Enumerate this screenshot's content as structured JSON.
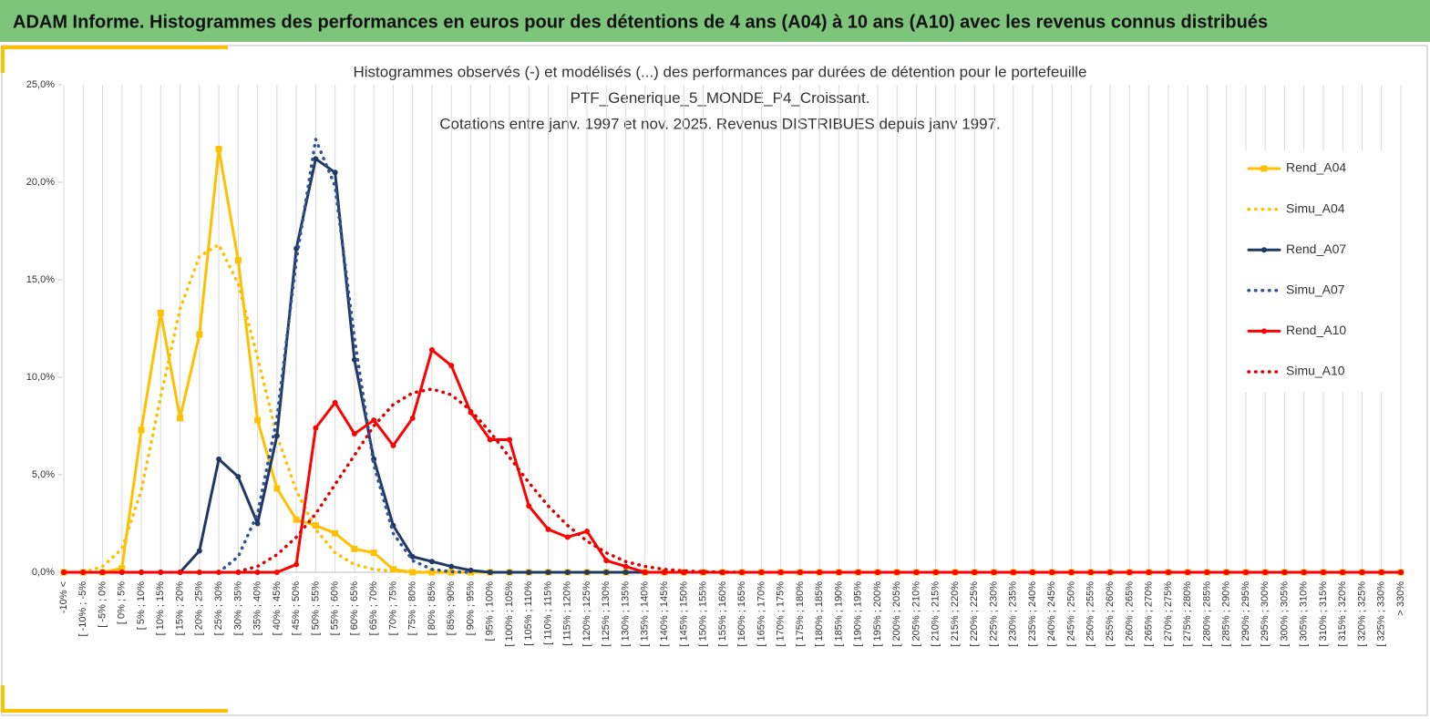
{
  "header_title": "ADAM Informe. Histogrammes des performances en euros pour des détentions de 4 ans (A04) à 10 ans (A10) avec les revenus connus distribués",
  "chart_data": {
    "type": "line",
    "title": [
      "Histogrammes observés (-) et modélisés (...) des performances  par durées de détention pour le portefeuille",
      "PTF_Generique_5_MONDE_P4_Croissant.",
      "Cotations entre janv. 1997 et nov. 2025. Revenus DISTRIBUES depuis janv 1997."
    ],
    "categories": [
      "-10% <",
      "[ -10% ; -5%",
      "[ -5% ; 0%",
      "[ 0% ; 5%",
      "[ 5% ; 10%",
      "[ 10% ; 15%",
      "[ 15% ; 20%",
      "[ 20% ; 25%",
      "[ 25% ; 30%",
      "[ 30% ; 35%",
      "[ 35% ; 40%",
      "[ 40% ; 45%",
      "[ 45% ; 50%",
      "[ 50% ; 55%",
      "[ 55% ; 60%",
      "[ 60% ; 65%",
      "[ 65% ; 70%",
      "[ 70% ; 75%",
      "[ 75% ; 80%",
      "[ 80% ; 85%",
      "[ 85% ; 90%",
      "[ 90% ; 95%",
      "[ 95% ; 100%",
      "[ 100% ; 105%",
      "[ 105% ; 110%",
      "[ 110% ; 115%",
      "[ 115% ; 120%",
      "[ 120% ; 125%",
      "[ 125% ; 130%",
      "[ 130% ; 135%",
      "[ 135% ; 140%",
      "[ 140% ; 145%",
      "[ 145% ; 150%",
      "[ 150% ; 155%",
      "[ 155% ; 160%",
      "[ 160% ; 165%",
      "[ 165% ; 170%",
      "[ 170% ; 175%",
      "[ 175% ; 180%",
      "[ 180% ; 185%",
      "[ 185% ; 190%",
      "[ 190% ; 195%",
      "[ 195% ; 200%",
      "[ 200% ; 205%",
      "[ 205% ; 210%",
      "[ 210% ; 215%",
      "[ 215% ; 220%",
      "[ 220% ; 225%",
      "[ 225% ; 230%",
      "[ 230% ; 235%",
      "[ 235% ; 240%",
      "[ 240% ; 245%",
      "[ 245% ; 250%",
      "[ 250% ; 255%",
      "[ 255% ; 260%",
      "[ 260% ; 265%",
      "[ 265% ; 270%",
      "[ 270% ; 275%",
      "[ 275% ; 280%",
      "[ 280% ; 285%",
      "[ 285% ; 290%",
      "[ 290% ; 295%",
      "[ 295% ; 300%",
      "[ 300% ; 305%",
      "[ 305% ; 310%",
      "[ 310% ; 315%",
      "[ 315% ; 320%",
      "[ 320% ; 325%",
      "[ 325% ; 330%",
      "> 330%"
    ],
    "ylim": [
      0,
      25
    ],
    "yticks": [
      {
        "value": 0,
        "label": "0,0%"
      },
      {
        "value": 5,
        "label": "5,0%"
      },
      {
        "value": 10,
        "label": "10,0%"
      },
      {
        "value": 15,
        "label": "15,0%"
      },
      {
        "value": 20,
        "label": "20,0%"
      },
      {
        "value": 25,
        "label": "25,0%"
      }
    ],
    "grid": true,
    "legend": "right",
    "series": [
      {
        "name": "Rend_A04",
        "color": "#ffc000",
        "style": "solid",
        "marker": "square",
        "values": [
          0,
          0,
          0,
          0.2,
          7.3,
          13.3,
          7.9,
          12.2,
          21.7,
          16.0,
          7.8,
          4.3,
          2.7,
          2.4,
          2.0,
          1.2,
          1.0,
          0.15,
          0,
          0,
          0,
          0,
          0,
          0,
          0,
          0,
          0,
          0,
          0,
          0,
          0,
          0,
          0,
          0,
          0,
          0,
          0,
          0,
          0,
          0,
          0,
          0,
          0,
          0,
          0,
          0,
          0,
          0,
          0,
          0,
          0,
          0,
          0,
          0,
          0,
          0,
          0,
          0,
          0,
          0,
          0,
          0,
          0,
          0,
          0,
          0,
          0,
          0,
          0,
          0
        ]
      },
      {
        "name": "Simu_A04",
        "color": "#ffc000",
        "style": "dotted",
        "marker": "none",
        "values": [
          null,
          0,
          0.3,
          1.2,
          4.2,
          9.0,
          13.5,
          16.2,
          16.8,
          14.8,
          11.0,
          7.0,
          4.2,
          2.2,
          1.0,
          0.4,
          0.15,
          0.05,
          0.02,
          0.01,
          0,
          0,
          null,
          null,
          null,
          null,
          null,
          null,
          null,
          null,
          null,
          null,
          null,
          null,
          null,
          null,
          null,
          null,
          null,
          null,
          null,
          null,
          null,
          null,
          null,
          null,
          null,
          null,
          null,
          null,
          null,
          null,
          null,
          null,
          null,
          null,
          null,
          null,
          null,
          null,
          null,
          null,
          null,
          null,
          null,
          null,
          null,
          null,
          null,
          null
        ]
      },
      {
        "name": "Rend_A07",
        "color": "#1f3864",
        "style": "solid",
        "marker": "circle",
        "values": [
          0,
          0,
          0,
          0,
          0,
          0,
          0,
          1.1,
          5.8,
          4.9,
          2.5,
          7.0,
          16.6,
          21.2,
          20.5,
          10.9,
          5.8,
          2.4,
          0.8,
          0.55,
          0.3,
          0.1,
          0,
          0,
          0,
          0,
          0,
          0,
          0,
          0,
          0,
          0,
          0,
          0,
          0,
          0,
          0,
          0,
          0,
          0,
          0,
          0,
          0,
          0,
          0,
          0,
          0,
          0,
          0,
          0,
          0,
          0,
          0,
          0,
          0,
          0,
          0,
          0,
          0,
          0,
          0,
          0,
          0,
          0,
          0,
          0,
          0,
          0,
          0,
          0
        ]
      },
      {
        "name": "Simu_A07",
        "color": "#2f5597",
        "style": "dotted",
        "marker": "none",
        "values": [
          null,
          null,
          null,
          null,
          null,
          null,
          null,
          null,
          0,
          0.8,
          3.0,
          7.9,
          16.0,
          22.2,
          19.8,
          12.0,
          5.5,
          2.0,
          0.6,
          0.15,
          0.03,
          0,
          null,
          null,
          null,
          null,
          null,
          null,
          null,
          null,
          null,
          null,
          null,
          null,
          null,
          null,
          null,
          null,
          null,
          null,
          null,
          null,
          null,
          null,
          null,
          null,
          null,
          null,
          null,
          null,
          null,
          null,
          null,
          null,
          null,
          null,
          null,
          null,
          null,
          null,
          null,
          null,
          null,
          null,
          null,
          null,
          null,
          null,
          null,
          null
        ]
      },
      {
        "name": "Rend_A10",
        "color": "#ff0000",
        "style": "solid",
        "marker": "circle",
        "values": [
          0,
          0,
          0,
          0,
          0,
          0,
          0,
          0,
          0,
          0,
          0,
          0,
          0.4,
          7.4,
          8.7,
          7.1,
          7.8,
          6.5,
          7.9,
          11.4,
          10.6,
          8.2,
          6.8,
          6.8,
          3.4,
          2.2,
          1.8,
          2.1,
          0.6,
          0.3,
          0,
          0,
          0,
          0,
          0,
          0,
          0,
          0,
          0,
          0,
          0,
          0,
          0,
          0,
          0,
          0,
          0,
          0,
          0,
          0,
          0,
          0,
          0,
          0,
          0,
          0,
          0,
          0,
          0,
          0,
          0,
          0,
          0,
          0,
          0,
          0,
          0,
          0,
          0,
          0
        ]
      },
      {
        "name": "Simu_A10",
        "color": "#e00000",
        "style": "dotted",
        "marker": "none",
        "values": [
          null,
          null,
          null,
          null,
          null,
          null,
          null,
          null,
          null,
          0.05,
          0.3,
          0.9,
          1.8,
          3.0,
          4.5,
          6.0,
          7.5,
          8.6,
          9.2,
          9.4,
          9.1,
          8.3,
          7.2,
          5.9,
          4.6,
          3.4,
          2.4,
          1.6,
          1.0,
          0.55,
          0.3,
          0.15,
          0.07,
          0.03,
          0.01,
          0,
          null,
          null,
          null,
          null,
          null,
          null,
          null,
          null,
          null,
          null,
          null,
          null,
          null,
          null,
          null,
          null,
          null,
          null,
          null,
          null,
          null,
          null,
          null,
          null,
          null,
          null,
          null,
          null,
          null,
          null,
          null,
          null,
          null,
          null
        ]
      }
    ]
  }
}
